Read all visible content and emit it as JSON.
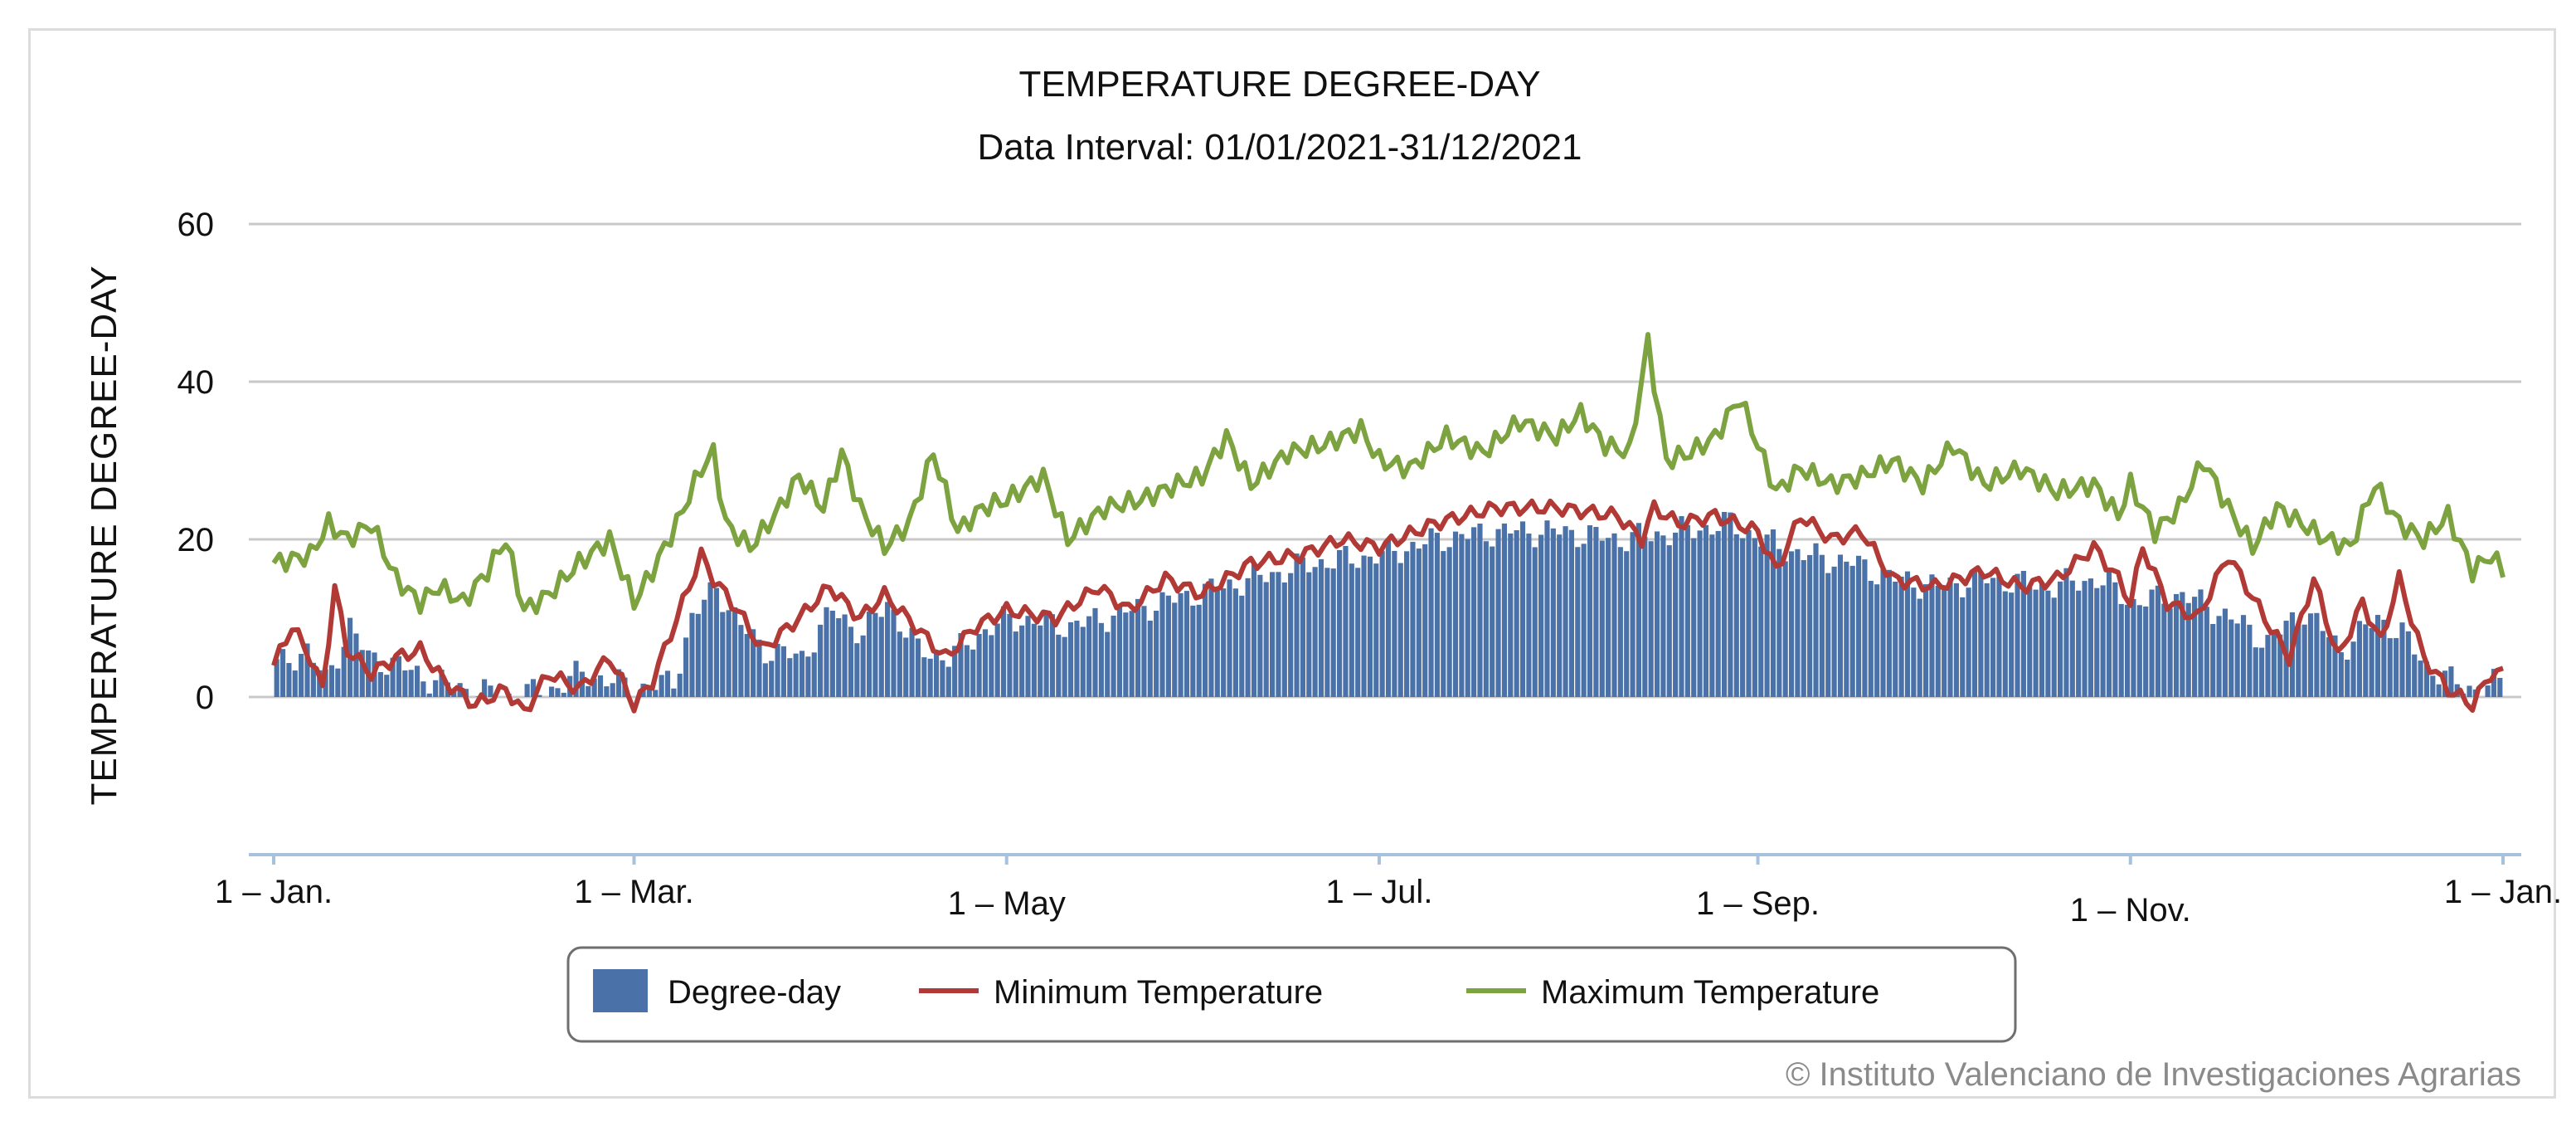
{
  "chart_data": {
    "type": "bar+line",
    "title": "TEMPERATURE DEGREE-DAY",
    "subtitle": "Data Interval: 01/01/2021-31/12/2021",
    "ylabel": "TEMPERATURE DEGREE-DAY",
    "xlabel": "",
    "ylim": [
      -20,
      60
    ],
    "yticks": [
      0,
      20,
      40,
      60
    ],
    "xlim_days": [
      0,
      365
    ],
    "xticks": [
      {
        "day": 0,
        "label": "1 – Jan."
      },
      {
        "day": 59,
        "label": "1 – Mar."
      },
      {
        "day": 120,
        "label": "1 – May"
      },
      {
        "day": 181,
        "label": "1 – Jul."
      },
      {
        "day": 243,
        "label": "1 – Sep."
      },
      {
        "day": 304,
        "label": "1 – Nov."
      },
      {
        "day": 365,
        "label": "1 – Jan."
      }
    ],
    "grid": true,
    "colors": {
      "degree_day": "#4a72a8",
      "min_temp": "#b13a36",
      "max_temp": "#7da340",
      "grid": "#c8c8c8",
      "axis": "#a8c2de"
    },
    "series": [
      {
        "name": "Degree-day",
        "kind": "bar",
        "anchors": [
          [
            0,
            4
          ],
          [
            5,
            6
          ],
          [
            8,
            2
          ],
          [
            12,
            9
          ],
          [
            15,
            5
          ],
          [
            20,
            4
          ],
          [
            26,
            2
          ],
          [
            31,
            1
          ],
          [
            38,
            0
          ],
          [
            45,
            1
          ],
          [
            50,
            3
          ],
          [
            55,
            2
          ],
          [
            59,
            1
          ],
          [
            65,
            2
          ],
          [
            68,
            10
          ],
          [
            72,
            14
          ],
          [
            76,
            9
          ],
          [
            80,
            6
          ],
          [
            86,
            5
          ],
          [
            91,
            11
          ],
          [
            96,
            8
          ],
          [
            100,
            12
          ],
          [
            105,
            6
          ],
          [
            110,
            5
          ],
          [
            115,
            8
          ],
          [
            120,
            10
          ],
          [
            130,
            9
          ],
          [
            140,
            11
          ],
          [
            150,
            13
          ],
          [
            160,
            15
          ],
          [
            170,
            17
          ],
          [
            181,
            18
          ],
          [
            190,
            20
          ],
          [
            200,
            21
          ],
          [
            210,
            21
          ],
          [
            220,
            20
          ],
          [
            230,
            21
          ],
          [
            238,
            22
          ],
          [
            243,
            20
          ],
          [
            250,
            18
          ],
          [
            258,
            17
          ],
          [
            265,
            15
          ],
          [
            272,
            14
          ],
          [
            280,
            15
          ],
          [
            290,
            14
          ],
          [
            298,
            15
          ],
          [
            304,
            12
          ],
          [
            312,
            13
          ],
          [
            320,
            10
          ],
          [
            326,
            7
          ],
          [
            332,
            11
          ],
          [
            338,
            6
          ],
          [
            344,
            10
          ],
          [
            348,
            8
          ],
          [
            352,
            4
          ],
          [
            356,
            2
          ],
          [
            360,
            1
          ],
          [
            365,
            2
          ]
        ]
      },
      {
        "name": "Minimum Temperature",
        "kind": "line",
        "anchors": [
          [
            0,
            4
          ],
          [
            3,
            9
          ],
          [
            6,
            5
          ],
          [
            8,
            1
          ],
          [
            10,
            14
          ],
          [
            12,
            6
          ],
          [
            16,
            3
          ],
          [
            20,
            5
          ],
          [
            24,
            6
          ],
          [
            28,
            2
          ],
          [
            33,
            -1
          ],
          [
            38,
            1
          ],
          [
            41,
            -2
          ],
          [
            45,
            3
          ],
          [
            50,
            1
          ],
          [
            55,
            5
          ],
          [
            59,
            -1
          ],
          [
            62,
            2
          ],
          [
            65,
            8
          ],
          [
            68,
            14
          ],
          [
            70,
            18
          ],
          [
            72,
            15
          ],
          [
            76,
            11
          ],
          [
            80,
            6
          ],
          [
            86,
            10
          ],
          [
            91,
            14
          ],
          [
            96,
            10
          ],
          [
            100,
            13
          ],
          [
            105,
            9
          ],
          [
            110,
            5
          ],
          [
            115,
            9
          ],
          [
            120,
            11
          ],
          [
            128,
            10
          ],
          [
            135,
            14
          ],
          [
            140,
            11
          ],
          [
            146,
            15
          ],
          [
            152,
            13
          ],
          [
            160,
            17
          ],
          [
            168,
            18
          ],
          [
            175,
            20
          ],
          [
            181,
            19
          ],
          [
            190,
            22
          ],
          [
            200,
            24
          ],
          [
            210,
            24
          ],
          [
            220,
            23
          ],
          [
            224,
            20
          ],
          [
            226,
            24
          ],
          [
            230,
            22
          ],
          [
            236,
            23
          ],
          [
            243,
            21
          ],
          [
            246,
            16
          ],
          [
            250,
            23
          ],
          [
            255,
            20
          ],
          [
            260,
            21
          ],
          [
            265,
            15
          ],
          [
            272,
            14
          ],
          [
            280,
            16
          ],
          [
            286,
            14
          ],
          [
            292,
            15
          ],
          [
            298,
            19
          ],
          [
            302,
            15
          ],
          [
            304,
            12
          ],
          [
            306,
            19
          ],
          [
            310,
            12
          ],
          [
            315,
            10
          ],
          [
            320,
            18
          ],
          [
            326,
            10
          ],
          [
            330,
            5
          ],
          [
            334,
            15
          ],
          [
            338,
            5
          ],
          [
            342,
            12
          ],
          [
            345,
            7
          ],
          [
            348,
            15
          ],
          [
            352,
            5
          ],
          [
            356,
            1
          ],
          [
            360,
            -1
          ],
          [
            363,
            3
          ],
          [
            365,
            3
          ]
        ]
      },
      {
        "name": "Maximum Temperature",
        "kind": "line",
        "anchors": [
          [
            0,
            17
          ],
          [
            6,
            18
          ],
          [
            9,
            22
          ],
          [
            12,
            20
          ],
          [
            16,
            22
          ],
          [
            20,
            15
          ],
          [
            24,
            12
          ],
          [
            27,
            14
          ],
          [
            31,
            12
          ],
          [
            35,
            16
          ],
          [
            38,
            20
          ],
          [
            41,
            11
          ],
          [
            45,
            13
          ],
          [
            50,
            17
          ],
          [
            55,
            20
          ],
          [
            59,
            12
          ],
          [
            62,
            16
          ],
          [
            66,
            22
          ],
          [
            70,
            29
          ],
          [
            72,
            31
          ],
          [
            74,
            22
          ],
          [
            78,
            19
          ],
          [
            82,
            23
          ],
          [
            86,
            28
          ],
          [
            90,
            24
          ],
          [
            93,
            31
          ],
          [
            96,
            24
          ],
          [
            100,
            19
          ],
          [
            104,
            22
          ],
          [
            108,
            31
          ],
          [
            112,
            21
          ],
          [
            116,
            24
          ],
          [
            120,
            25
          ],
          [
            126,
            28
          ],
          [
            130,
            20
          ],
          [
            136,
            24
          ],
          [
            142,
            25
          ],
          [
            148,
            27
          ],
          [
            152,
            28
          ],
          [
            156,
            33
          ],
          [
            160,
            27
          ],
          [
            166,
            31
          ],
          [
            172,
            32
          ],
          [
            178,
            34
          ],
          [
            181,
            30
          ],
          [
            186,
            29
          ],
          [
            192,
            33
          ],
          [
            198,
            31
          ],
          [
            204,
            35
          ],
          [
            210,
            33
          ],
          [
            214,
            36
          ],
          [
            218,
            32
          ],
          [
            222,
            31
          ],
          [
            225,
            45
          ],
          [
            228,
            30
          ],
          [
            232,
            31
          ],
          [
            236,
            33
          ],
          [
            240,
            38
          ],
          [
            243,
            32
          ],
          [
            246,
            26
          ],
          [
            250,
            29
          ],
          [
            255,
            27
          ],
          [
            260,
            28
          ],
          [
            265,
            30
          ],
          [
            270,
            27
          ],
          [
            275,
            32
          ],
          [
            280,
            27
          ],
          [
            286,
            29
          ],
          [
            292,
            26
          ],
          [
            298,
            27
          ],
          [
            302,
            23
          ],
          [
            304,
            27
          ],
          [
            308,
            21
          ],
          [
            312,
            24
          ],
          [
            316,
            30
          ],
          [
            320,
            24
          ],
          [
            324,
            19
          ],
          [
            328,
            24
          ],
          [
            332,
            22
          ],
          [
            336,
            20
          ],
          [
            340,
            19
          ],
          [
            344,
            27
          ],
          [
            348,
            22
          ],
          [
            352,
            20
          ],
          [
            356,
            23
          ],
          [
            360,
            16
          ],
          [
            363,
            18
          ],
          [
            365,
            16
          ]
        ]
      }
    ]
  },
  "legend": {
    "items": [
      {
        "label": "Degree-day",
        "color": "#4a72a8"
      },
      {
        "label": "Minimum Temperature",
        "color": "#b13a36"
      },
      {
        "label": "Maximum Temperature",
        "color": "#7da340"
      }
    ]
  },
  "credit": "© Instituto Valenciano de Investigaciones Agrarias"
}
